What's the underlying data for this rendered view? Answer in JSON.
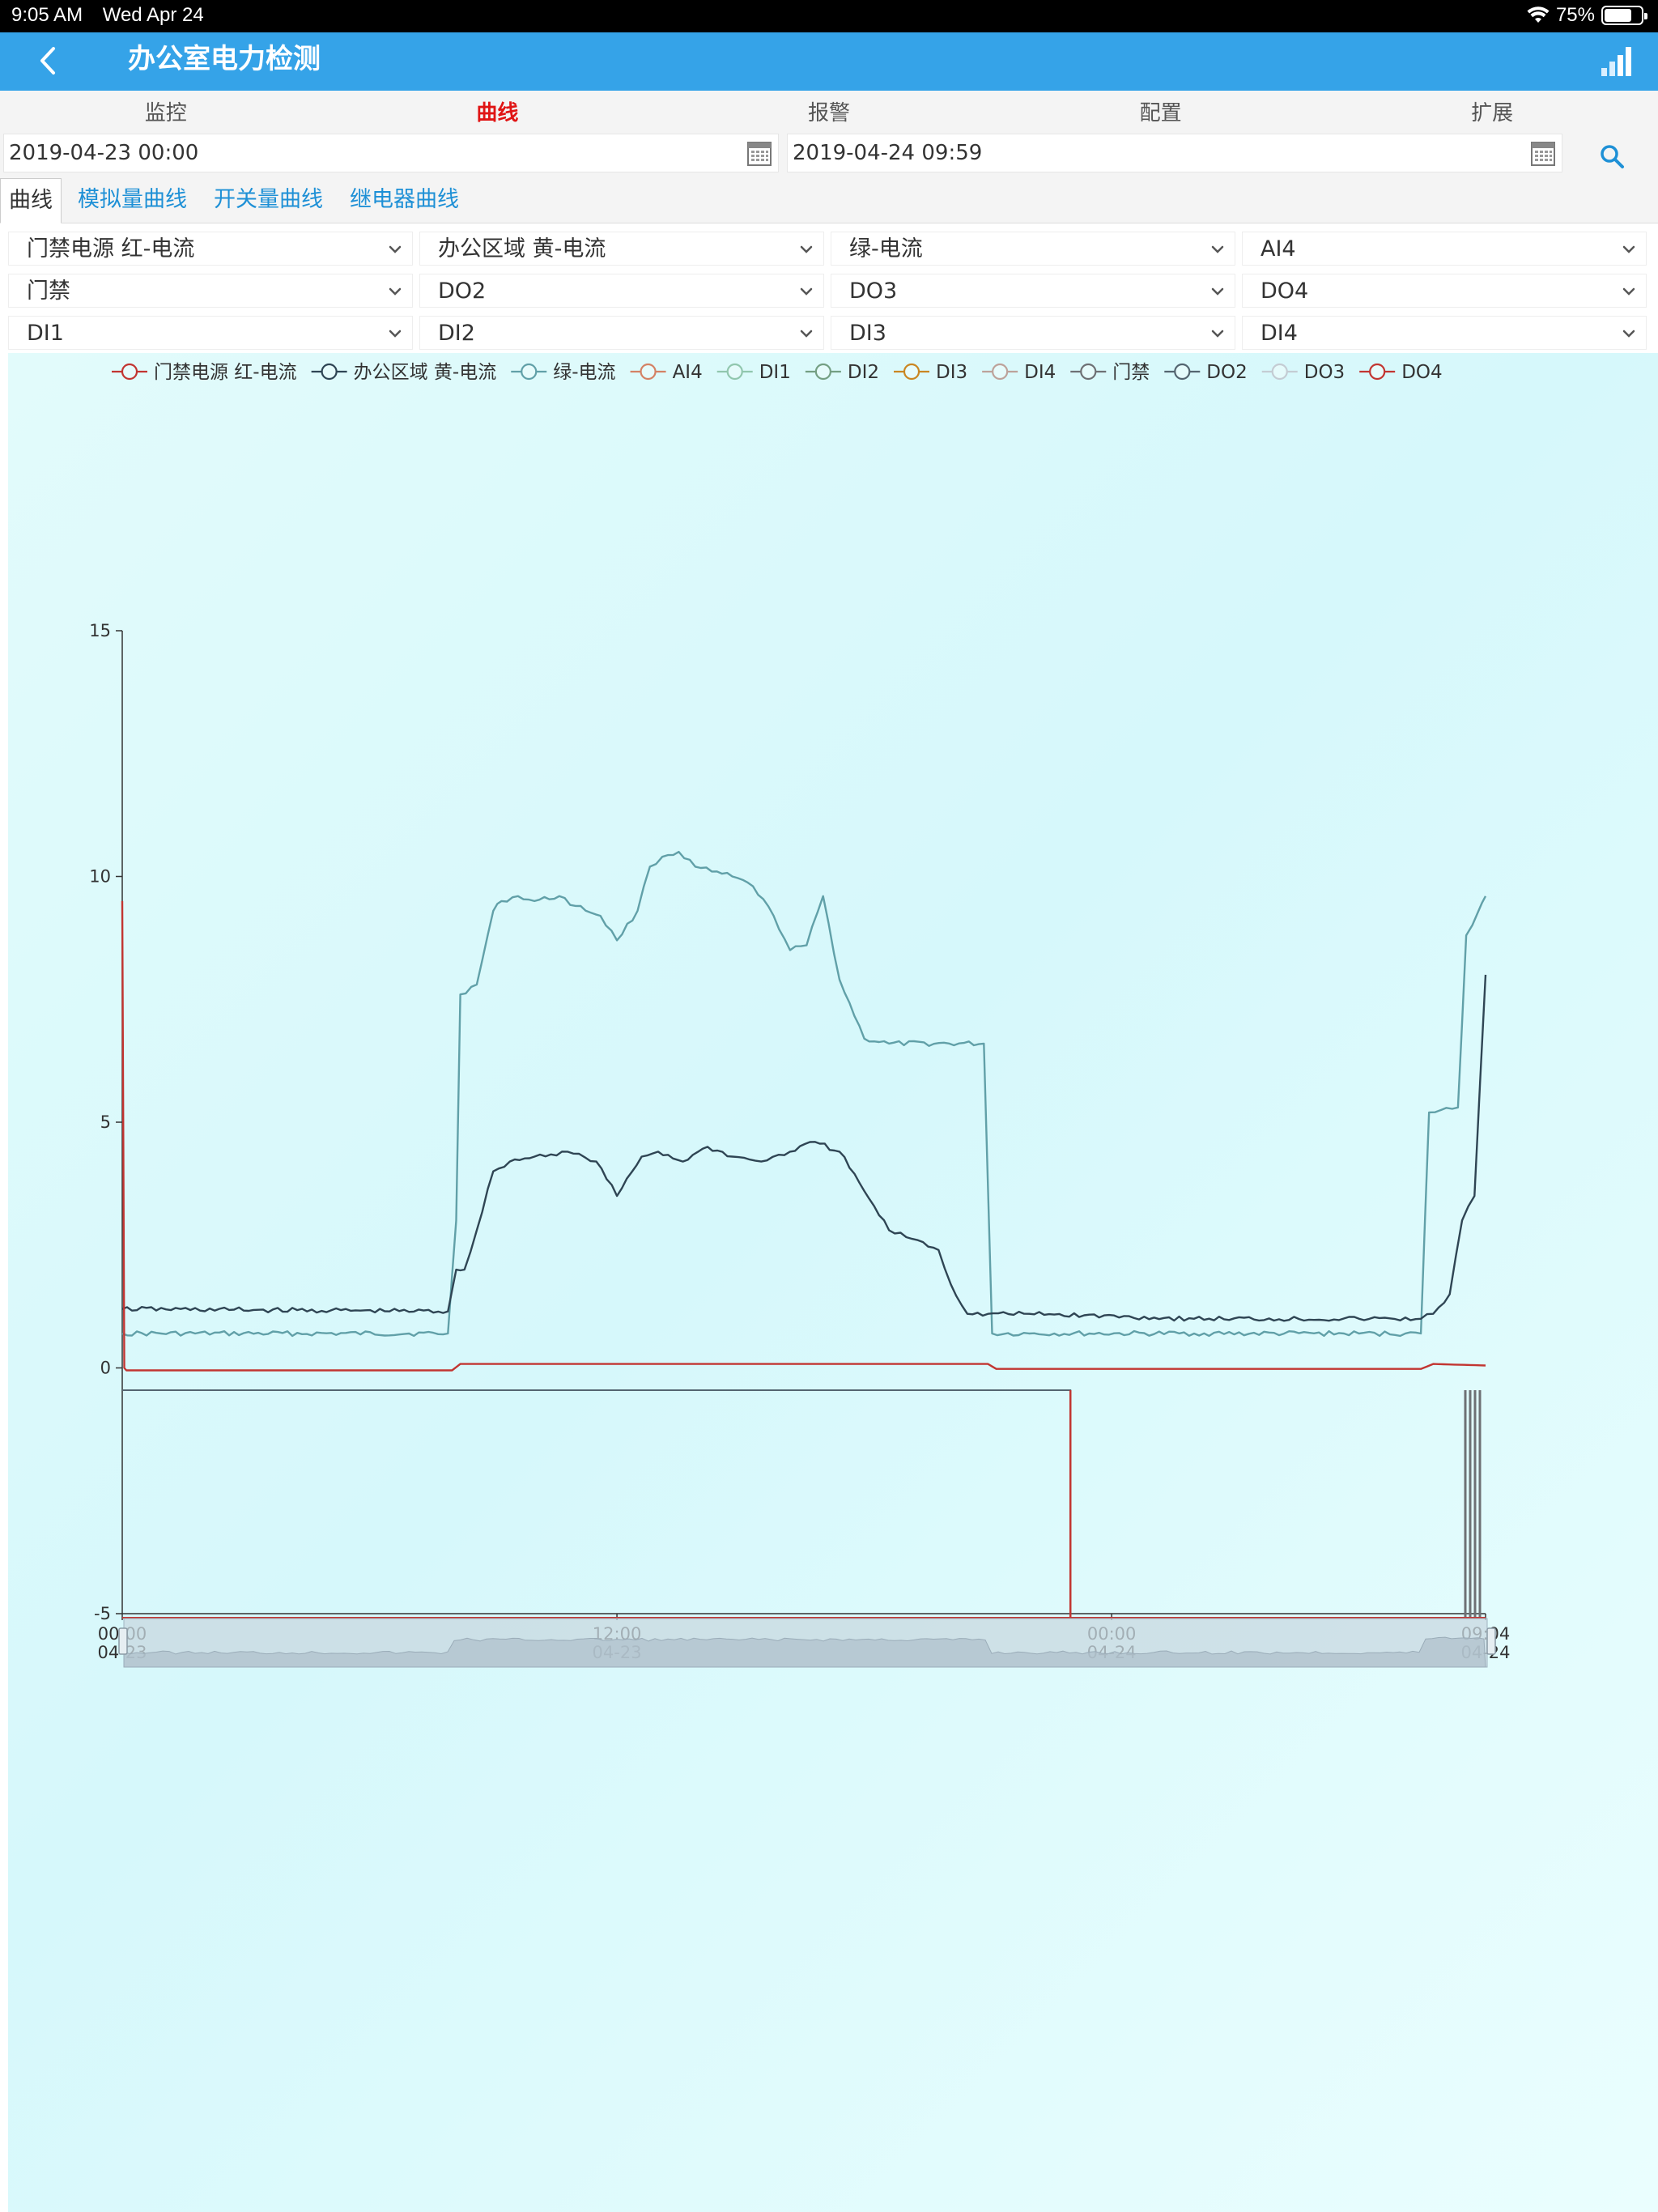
{
  "status_bar": {
    "time": "9:05 AM",
    "date": "Wed Apr 24",
    "battery": "75%",
    "battery_fraction": 0.75
  },
  "header": {
    "title": "办公室电力检测",
    "back_icon": "chevron-left-icon",
    "signal_icon": "signal-bars-icon"
  },
  "nav": [
    {
      "label": "监控",
      "active": false
    },
    {
      "label": "曲线",
      "active": true
    },
    {
      "label": "报警",
      "active": false
    },
    {
      "label": "配置",
      "active": false
    },
    {
      "label": "扩展",
      "active": false
    }
  ],
  "date_range": {
    "start": "2019-04-23 00:00",
    "end": "2019-04-24 09:59"
  },
  "sub_tabs": [
    {
      "label": "曲线",
      "active": true
    },
    {
      "label": "模拟量曲线",
      "active": false
    },
    {
      "label": "开关量曲线",
      "active": false
    },
    {
      "label": "继电器曲线",
      "active": false
    }
  ],
  "selects": [
    [
      "门禁电源 红-电流",
      "办公区域 黄-电流",
      "绿-电流",
      "AI4"
    ],
    [
      "门禁",
      "DO2",
      "DO3",
      "DO4"
    ],
    [
      "DI1",
      "DI2",
      "DI3",
      "DI4"
    ]
  ],
  "chart_data": {
    "type": "line",
    "title": "",
    "xlabel": "",
    "ylabel": "",
    "ylim": [
      -5,
      15
    ],
    "y_ticks": [
      "15",
      "10",
      "5",
      "0",
      "-5"
    ],
    "x_ticks": [
      {
        "time": "00:00",
        "date": "04-23"
      },
      {
        "time": "12:00",
        "date": "04-23"
      },
      {
        "time": "00:00",
        "date": "04-24"
      },
      {
        "time": "09:04",
        "date": "04-24"
      }
    ],
    "x_range_hours": [
      0,
      33.07
    ],
    "legend": [
      {
        "name": "门禁电源 红-电流",
        "color": "#c23531"
      },
      {
        "name": "办公区域 黄-电流",
        "color": "#2f4554"
      },
      {
        "name": "绿-电流",
        "color": "#61a0a8"
      },
      {
        "name": "AI4",
        "color": "#d48265"
      },
      {
        "name": "DI1",
        "color": "#91c7ae"
      },
      {
        "name": "DI2",
        "color": "#749f83"
      },
      {
        "name": "DI3",
        "color": "#ca8622"
      },
      {
        "name": "DI4",
        "color": "#bda29a"
      },
      {
        "name": "门禁",
        "color": "#6e7074"
      },
      {
        "name": "DO2",
        "color": "#546570"
      },
      {
        "name": "DO3",
        "color": "#c4ccd3"
      },
      {
        "name": "DO4",
        "color": "#c23531"
      }
    ],
    "series": [
      {
        "name": "绿-电流",
        "color": "#61a0a8",
        "x": [
          0.0,
          7.9,
          8.1,
          8.2,
          8.6,
          9.0,
          9.2,
          9.6,
          10.0,
          10.6,
          11.0,
          11.6,
          12.0,
          12.5,
          12.8,
          13.1,
          13.5,
          13.9,
          14.3,
          14.8,
          15.3,
          15.8,
          16.2,
          16.6,
          17.0,
          17.4,
          18.0,
          18.6,
          20.9,
          21.1,
          22.0,
          26.0,
          30.0,
          31.5,
          31.7,
          32.4,
          32.6,
          32.9,
          33.07
        ],
        "values": [
          0.7,
          0.7,
          3.0,
          7.6,
          7.8,
          9.3,
          9.5,
          9.6,
          9.5,
          9.6,
          9.4,
          9.2,
          8.7,
          9.3,
          10.2,
          10.4,
          10.5,
          10.2,
          10.1,
          10.0,
          9.8,
          9.2,
          8.5,
          8.6,
          9.6,
          7.9,
          6.7,
          6.6,
          6.6,
          0.7,
          0.7,
          0.7,
          0.7,
          0.7,
          5.2,
          5.3,
          8.8,
          9.3,
          9.6
        ]
      },
      {
        "name": "办公区域 黄-电流",
        "color": "#2f4554",
        "x": [
          0.0,
          7.9,
          8.1,
          8.3,
          8.6,
          9.0,
          9.4,
          10.0,
          10.8,
          11.5,
          12.0,
          12.6,
          13.0,
          13.6,
          14.2,
          14.8,
          15.5,
          16.2,
          16.8,
          17.4,
          18.0,
          18.6,
          19.3,
          19.8,
          20.1,
          20.5,
          21.0,
          22.0,
          26.0,
          30.0,
          31.5,
          31.8,
          32.2,
          32.5,
          32.8,
          33.07
        ],
        "values": [
          1.2,
          1.15,
          2.0,
          2.0,
          2.8,
          4.0,
          4.2,
          4.3,
          4.4,
          4.2,
          3.5,
          4.3,
          4.4,
          4.2,
          4.5,
          4.3,
          4.2,
          4.4,
          4.6,
          4.4,
          3.6,
          2.8,
          2.6,
          2.4,
          1.7,
          1.1,
          1.1,
          1.1,
          1.0,
          1.0,
          1.0,
          1.1,
          1.5,
          3.0,
          3.5,
          8.0
        ]
      },
      {
        "name": "门禁电源 红-电流",
        "color": "#c23531",
        "x": [
          0.0,
          0.05,
          0.1,
          8.0,
          8.2,
          21.0,
          21.2,
          31.5,
          31.8,
          33.07
        ],
        "values": [
          9.5,
          0.0,
          -0.05,
          -0.05,
          0.08,
          0.08,
          -0.02,
          -0.02,
          0.08,
          0.05
        ]
      }
    ]
  },
  "overview": {
    "relay_series": "门禁",
    "switch_hour": 23.0
  }
}
